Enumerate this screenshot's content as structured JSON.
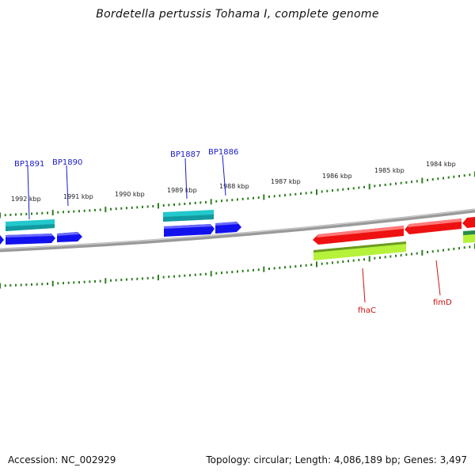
{
  "title": "Bordetella pertussis Tohama I, complete genome",
  "footer": {
    "accession": "Accession: NC_002929",
    "info": "Topology: circular; Length: 4,086,189 bp; Genes: 3,497"
  },
  "colors": {
    "backbone": "#8a8a8a",
    "tick": "#2e7d1e",
    "blue_label": "#1a1acc",
    "red_label": "#cc1111",
    "gene_blue": "#1111ee",
    "gene_cyan": "#22c8cc",
    "gene_red": "#ee1111",
    "gene_green": "#b6f23a"
  },
  "kbp_labels": [
    "1992 kbp",
    "1991 kbp",
    "1990 kbp",
    "1989 kbp",
    "1988 kbp",
    "1987 kbp",
    "1986 kbp",
    "1985 kbp",
    "1984 kbp"
  ],
  "gene_labels_top": [
    "BP1891",
    "BP1890",
    "BP1887",
    "BP1886"
  ],
  "gene_labels_bottom": [
    "fhaC",
    "fimD"
  ]
}
